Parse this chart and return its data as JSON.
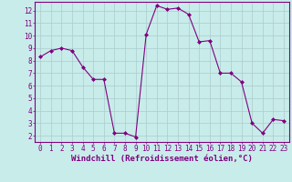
{
  "x": [
    0,
    1,
    2,
    3,
    4,
    5,
    6,
    7,
    8,
    9,
    10,
    11,
    12,
    13,
    14,
    15,
    16,
    17,
    18,
    19,
    20,
    21,
    22,
    23
  ],
  "y": [
    8.3,
    8.8,
    9.0,
    8.8,
    7.5,
    6.5,
    6.5,
    2.2,
    2.2,
    1.9,
    10.1,
    12.4,
    12.1,
    12.2,
    11.7,
    9.5,
    9.6,
    7.0,
    7.0,
    6.3,
    3.0,
    2.2,
    3.3,
    3.2
  ],
  "line_color": "#800080",
  "marker": "D",
  "marker_size": 2,
  "bg_color": "#c8ecea",
  "grid_color": "#aacccc",
  "axis_color": "#800080",
  "xlabel": "Windchill (Refroidissement éolien,°C)",
  "xlim": [
    -0.5,
    23.5
  ],
  "ylim": [
    1.5,
    12.7
  ],
  "yticks": [
    2,
    3,
    4,
    5,
    6,
    7,
    8,
    9,
    10,
    11,
    12
  ],
  "xticks": [
    0,
    1,
    2,
    3,
    4,
    5,
    6,
    7,
    8,
    9,
    10,
    11,
    12,
    13,
    14,
    15,
    16,
    17,
    18,
    19,
    20,
    21,
    22,
    23
  ],
  "font_color": "#800080",
  "tick_fontsize": 5.5,
  "xlabel_fontsize": 6.5
}
